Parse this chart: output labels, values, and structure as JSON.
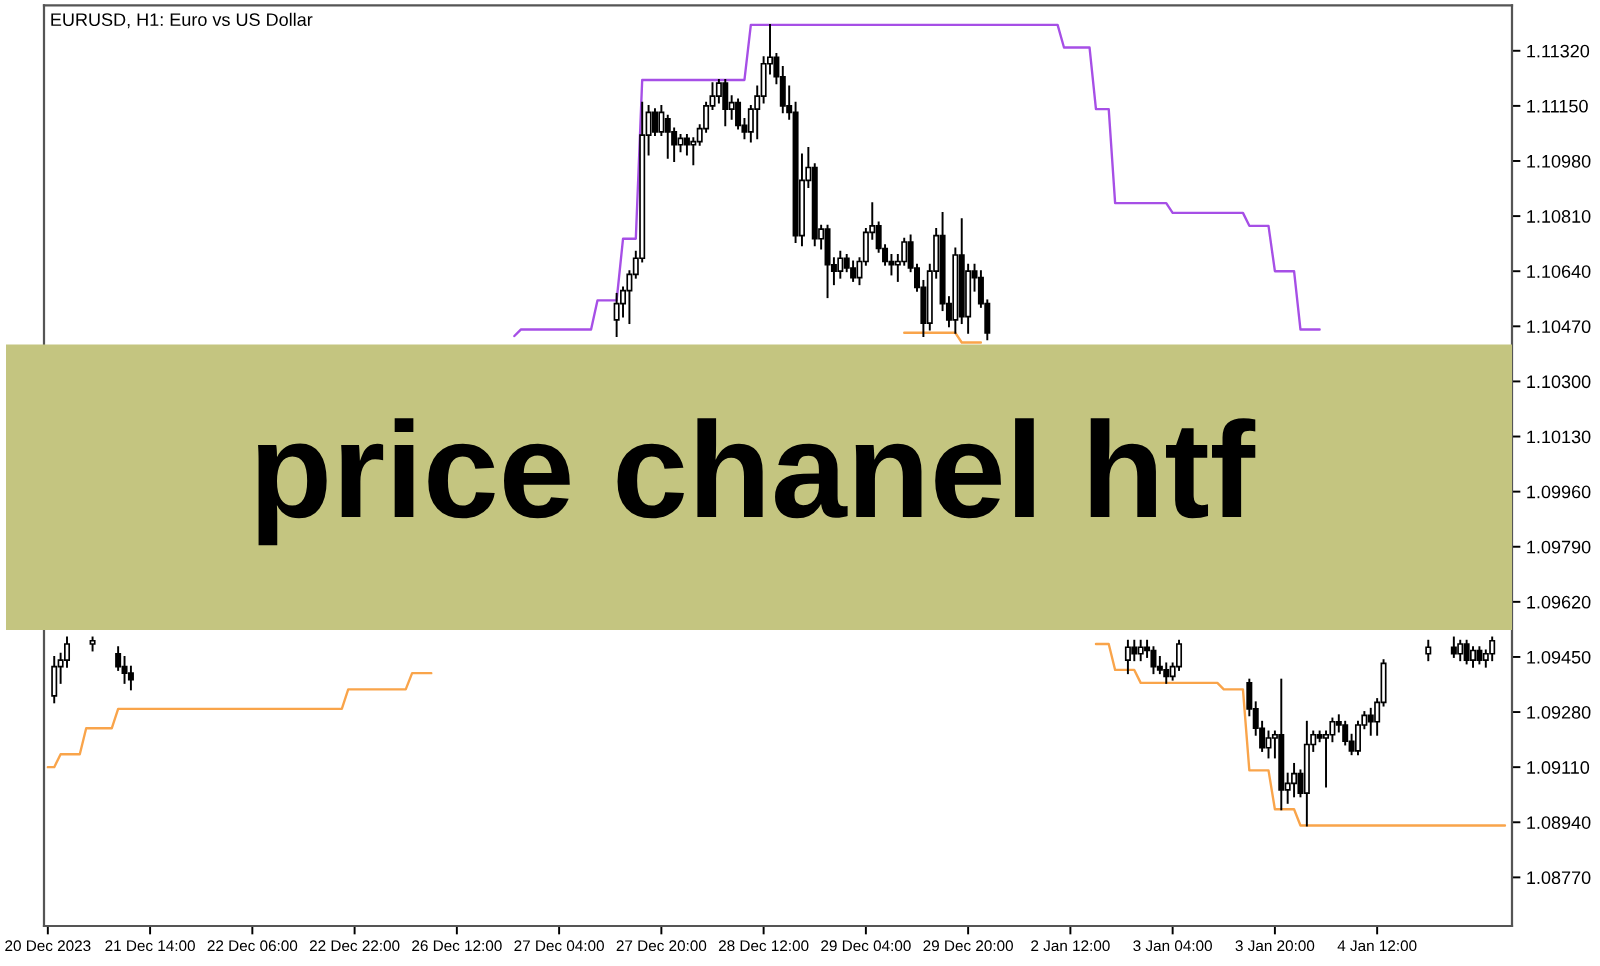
{
  "chart_data": {
    "type": "candlestick",
    "title": "price chanel htf",
    "subtitle": "EURUSD, H1: Euro vs US Dollar",
    "categories": [
      "20 Dec 2023",
      null,
      null,
      null,
      null,
      null,
      null,
      null,
      null,
      null,
      null,
      null,
      null,
      null,
      null,
      null,
      "21 Dec 14:00",
      null,
      null,
      null,
      null,
      null,
      null,
      null,
      null,
      null,
      null,
      null,
      null,
      null,
      null,
      null,
      "22 Dec 06:00",
      null,
      null,
      null,
      null,
      null,
      null,
      null,
      null,
      null,
      null,
      null,
      null,
      null,
      null,
      null,
      "22 Dec 22:00",
      null,
      null,
      null,
      null,
      null,
      null,
      null,
      null,
      null,
      null,
      null,
      null,
      null,
      null,
      null,
      "26 Dec 12:00",
      null,
      null,
      null,
      null,
      null,
      null,
      null,
      null,
      null,
      null,
      null,
      null,
      null,
      null,
      null,
      "27 Dec 04:00",
      null,
      null,
      null,
      null,
      null,
      null,
      null,
      null,
      null,
      null,
      null,
      null,
      null,
      null,
      null,
      "27 Dec 20:00",
      null,
      null,
      null,
      null,
      null,
      null,
      null,
      null,
      null,
      null,
      null,
      null,
      null,
      null,
      null,
      "28 Dec 12:00",
      null,
      null,
      null,
      null,
      null,
      null,
      null,
      null,
      null,
      null,
      null,
      null,
      null,
      null,
      null,
      "29 Dec 04:00",
      null,
      null,
      null,
      null,
      null,
      null,
      null,
      null,
      null,
      null,
      null,
      null,
      null,
      null,
      null,
      "29 Dec 20:00",
      null,
      null,
      null,
      null,
      null,
      null,
      null,
      null,
      null,
      null,
      null,
      null,
      null,
      null,
      null,
      "2 Jan 12:00",
      null,
      null,
      null,
      null,
      null,
      null,
      null,
      null,
      null,
      null,
      null,
      null,
      null,
      null,
      null,
      "3 Jan 04:00",
      null,
      null,
      null,
      null,
      null,
      null,
      null,
      null,
      null,
      null,
      null,
      null,
      null,
      null,
      null,
      "3 Jan 20:00",
      null,
      null,
      null,
      null,
      null,
      null,
      null,
      null,
      null,
      null,
      null,
      null,
      null,
      null,
      null,
      "4 Jan 12:00",
      null,
      null,
      null,
      null,
      null,
      null,
      null,
      null,
      null,
      null,
      null,
      null,
      null,
      null,
      null,
      null,
      null,
      null,
      null,
      null
    ],
    "ohlc": [
      null,
      [
        1.0933,
        1.0945,
        1.0931,
        1.0942
      ],
      [
        1.0942,
        1.0946,
        1.0937,
        1.0944
      ],
      [
        1.0944,
        1.0951,
        1.0942,
        1.0949
      ],
      null,
      null,
      null,
      [
        1.0949,
        1.0951,
        1.0947,
        1.095
      ],
      null,
      null,
      null,
      [
        1.0946,
        1.0948,
        1.0941,
        1.0942
      ],
      [
        1.0942,
        1.0945,
        1.0937,
        1.094
      ],
      [
        1.094,
        1.0942,
        1.0935,
        1.0938
      ],
      null,
      null,
      null,
      null,
      null,
      null,
      null,
      null,
      null,
      null,
      null,
      null,
      null,
      null,
      null,
      null,
      null,
      null,
      null,
      null,
      null,
      null,
      null,
      null,
      null,
      null,
      null,
      null,
      null,
      null,
      null,
      null,
      null,
      null,
      null,
      null,
      null,
      null,
      null,
      null,
      null,
      null,
      null,
      null,
      null,
      null,
      null,
      null,
      null,
      null,
      null,
      null,
      null,
      null,
      null,
      null,
      null,
      null,
      null,
      null,
      null,
      null,
      null,
      null,
      null,
      null,
      null,
      null,
      null,
      null,
      null,
      null,
      null,
      null,
      null,
      [
        1.1049,
        1.1057,
        1.1044,
        1.1054
      ],
      [
        1.1054,
        1.1059,
        1.105,
        1.1058
      ],
      [
        1.1058,
        1.1064,
        1.1048,
        1.1063
      ],
      [
        1.1063,
        1.107,
        1.1062,
        1.1068
      ],
      [
        1.1068,
        1.1116,
        1.1067,
        1.1106
      ],
      [
        1.1106,
        1.1115,
        1.11,
        1.1113
      ],
      [
        1.1113,
        1.1114,
        1.1106,
        1.1107
      ],
      [
        1.1107,
        1.1115,
        1.1106,
        1.1113
      ],
      [
        1.1111,
        1.1112,
        1.1099,
        1.1107
      ],
      [
        1.1107,
        1.1108,
        1.1098,
        1.1103
      ],
      [
        1.1103,
        1.1106,
        1.1101,
        1.1105
      ],
      [
        1.1105,
        1.1106,
        1.11,
        1.1103
      ],
      [
        1.1103,
        1.1105,
        1.1097,
        1.1104
      ],
      [
        1.1104,
        1.1109,
        1.1103,
        1.1108
      ],
      [
        1.1108,
        1.1116,
        1.1107,
        1.1115
      ],
      [
        1.1115,
        1.1122,
        1.1114,
        1.1118
      ],
      [
        1.1118,
        1.1123,
        1.1116,
        1.1122
      ],
      [
        1.1122,
        1.1123,
        1.1109,
        1.1114
      ],
      [
        1.1114,
        1.1118,
        1.1111,
        1.1116
      ],
      [
        1.1116,
        1.1117,
        1.1108,
        1.1109
      ],
      [
        1.1109,
        1.1111,
        1.1105,
        1.1107
      ],
      [
        1.1107,
        1.1115,
        1.1104,
        1.1114
      ],
      [
        1.1114,
        1.1121,
        1.1105,
        1.1118
      ],
      [
        1.1118,
        1.113,
        1.1116,
        1.1128
      ],
      [
        1.1128,
        1.114,
        1.1125,
        1.113
      ],
      [
        1.113,
        1.1131,
        1.1122,
        1.1124
      ],
      [
        1.1124,
        1.1127,
        1.1113,
        1.1115
      ],
      [
        1.1115,
        1.1121,
        1.1111,
        1.1113
      ],
      [
        1.1113,
        1.1116,
        1.1073,
        1.1075
      ],
      [
        1.1075,
        1.11,
        1.1072,
        1.1092
      ],
      [
        1.1092,
        1.1102,
        1.109,
        1.1096
      ],
      [
        1.1096,
        1.1097,
        1.1072,
        1.1074
      ],
      [
        1.1074,
        1.1078,
        1.1071,
        1.1077
      ],
      [
        1.1077,
        1.1078,
        1.1056,
        1.1066
      ],
      [
        1.1066,
        1.1068,
        1.106,
        1.1064
      ],
      [
        1.1064,
        1.107,
        1.1062,
        1.1068
      ],
      [
        1.1068,
        1.1069,
        1.1064,
        1.1065
      ],
      [
        1.1065,
        1.1067,
        1.1061,
        1.1062
      ],
      [
        1.1062,
        1.1068,
        1.106,
        1.1067
      ],
      [
        1.1067,
        1.1077,
        1.1066,
        1.1076
      ],
      [
        1.1076,
        1.1085,
        1.1074,
        1.1078
      ],
      [
        1.1078,
        1.1079,
        1.107,
        1.1071
      ],
      [
        1.1071,
        1.1072,
        1.1066,
        1.1067
      ],
      [
        1.1067,
        1.1069,
        1.1063,
        1.1066
      ],
      [
        1.1066,
        1.1069,
        1.1061,
        1.1067
      ],
      [
        1.1067,
        1.1074,
        1.1066,
        1.1073
      ],
      [
        1.1073,
        1.1075,
        1.1064,
        1.1065
      ],
      [
        1.1065,
        1.1066,
        1.1058,
        1.1059
      ],
      [
        1.1059,
        1.1061,
        1.1044,
        1.1048
      ],
      [
        1.1048,
        1.1066,
        1.1046,
        1.1064
      ],
      [
        1.1064,
        1.1077,
        1.1062,
        1.1075
      ],
      [
        1.1075,
        1.1082,
        1.1052,
        1.1054
      ],
      [
        1.1054,
        1.1056,
        1.1047,
        1.1049
      ],
      [
        1.1049,
        1.1071,
        1.1045,
        1.1069
      ],
      [
        1.1069,
        1.108,
        1.1048,
        1.105
      ],
      [
        1.105,
        1.1066,
        1.1045,
        1.1064
      ],
      [
        1.1064,
        1.1066,
        1.1058,
        1.1062
      ],
      [
        1.1062,
        1.1064,
        1.1053,
        1.1054
      ],
      [
        1.1054,
        1.1055,
        1.1043,
        1.1045
      ],
      null,
      null,
      null,
      null,
      null,
      null,
      null,
      null,
      null,
      null,
      null,
      null,
      null,
      null,
      null,
      null,
      null,
      null,
      null,
      null,
      null,
      [
        1.0944,
        1.095,
        1.094,
        1.0948
      ],
      [
        1.0948,
        1.095,
        1.0944,
        1.0946
      ],
      [
        1.0946,
        1.095,
        1.0944,
        1.0948
      ],
      [
        1.0948,
        1.095,
        1.0945,
        1.0947
      ],
      [
        1.0947,
        1.0948,
        1.094,
        1.0942
      ],
      [
        1.0942,
        1.0945,
        1.094,
        1.0941
      ],
      [
        1.0941,
        1.0943,
        1.0937,
        1.0939
      ],
      [
        1.0939,
        1.0943,
        1.0938,
        1.0942
      ],
      [
        1.0942,
        1.095,
        1.0941,
        1.0949
      ],
      null,
      null,
      null,
      null,
      null,
      null,
      null,
      null,
      null,
      null,
      [
        1.0937,
        1.0938,
        1.0927,
        1.0929
      ],
      [
        1.0929,
        1.0931,
        1.0921,
        1.0923
      ],
      [
        1.0923,
        1.0925,
        1.0916,
        1.0917
      ],
      [
        1.0917,
        1.0922,
        1.0914,
        1.092
      ],
      [
        1.092,
        1.0922,
        1.0914,
        1.0921
      ],
      [
        1.0921,
        1.0938,
        1.0898,
        1.0904
      ],
      [
        1.0904,
        1.0909,
        1.09,
        1.0906
      ],
      [
        1.0906,
        1.0912,
        1.0902,
        1.0909
      ],
      [
        1.0909,
        1.091,
        1.0902,
        1.0903
      ],
      [
        1.0903,
        1.0925,
        1.0893,
        1.0918
      ],
      [
        1.0918,
        1.0922,
        1.0916,
        1.0921
      ],
      [
        1.0921,
        1.0922,
        1.0919,
        1.092
      ],
      [
        1.092,
        1.0922,
        1.0905,
        1.0921
      ],
      [
        1.0921,
        1.0926,
        1.0919,
        1.0925
      ],
      [
        1.0925,
        1.0927,
        1.0922,
        1.0924
      ],
      [
        1.0924,
        1.0925,
        1.0918,
        1.0919
      ],
      [
        1.0919,
        1.0921,
        1.0915,
        1.0916
      ],
      [
        1.0916,
        1.0925,
        1.0915,
        1.0924
      ],
      [
        1.0924,
        1.0928,
        1.0923,
        1.0927
      ],
      [
        1.0927,
        1.0929,
        1.0921,
        1.0925
      ],
      [
        1.0925,
        1.0932,
        1.0921,
        1.0931
      ],
      [
        1.0931,
        1.0944,
        1.093,
        1.0943
      ],
      null,
      null,
      null,
      null,
      null,
      null,
      [
        1.0946,
        1.095,
        1.0944,
        1.0948
      ],
      null,
      null,
      null,
      [
        1.0948,
        1.0951,
        1.0945,
        1.0946
      ],
      [
        1.0946,
        1.095,
        1.0944,
        1.0949
      ],
      [
        1.0949,
        1.095,
        1.0943,
        1.0944
      ],
      [
        1.0944,
        1.0948,
        1.0942,
        1.0947
      ],
      [
        1.0947,
        1.0948,
        1.0943,
        1.0944
      ],
      [
        1.0944,
        1.0947,
        1.0942,
        1.0946
      ],
      [
        1.0946,
        1.0951,
        1.0944,
        1.095
      ],
      null,
      null
    ],
    "series": [
      {
        "type": "line",
        "color": "#a64fe6",
        "values": [
          null,
          null,
          null,
          null,
          null,
          null,
          null,
          null,
          null,
          null,
          null,
          null,
          null,
          null,
          null,
          null,
          null,
          null,
          null,
          null,
          null,
          null,
          null,
          null,
          null,
          null,
          null,
          null,
          null,
          null,
          null,
          null,
          null,
          null,
          null,
          null,
          null,
          null,
          null,
          null,
          null,
          null,
          null,
          null,
          null,
          null,
          null,
          null,
          null,
          null,
          null,
          null,
          null,
          null,
          null,
          null,
          null,
          null,
          null,
          null,
          null,
          null,
          null,
          null,
          null,
          null,
          null,
          null,
          null,
          null,
          null,
          null,
          null,
          1.1044,
          1.1046,
          1.1046,
          1.1046,
          1.1046,
          1.1046,
          1.1046,
          1.1046,
          1.1046,
          1.1046,
          1.1046,
          1.1046,
          1.1046,
          1.1055,
          1.1055,
          1.1055,
          1.1055,
          1.1074,
          1.1074,
          1.1074,
          1.1123,
          1.1123,
          1.1123,
          1.1123,
          1.1123,
          1.1123,
          1.1123,
          1.1123,
          1.1123,
          1.1123,
          1.1123,
          1.1123,
          1.1123,
          1.1123,
          1.1123,
          1.1123,
          1.1123,
          1.114,
          1.114,
          1.114,
          1.114,
          1.114,
          1.114,
          1.114,
          1.114,
          1.114,
          1.114,
          1.114,
          1.114,
          1.114,
          1.114,
          1.114,
          1.114,
          1.114,
          1.114,
          1.114,
          1.114,
          1.114,
          1.114,
          1.114,
          1.114,
          1.114,
          1.114,
          1.114,
          1.114,
          1.114,
          1.114,
          1.114,
          1.114,
          1.114,
          1.114,
          1.114,
          1.114,
          1.114,
          1.114,
          1.114,
          1.114,
          1.114,
          1.114,
          1.114,
          1.114,
          1.114,
          1.114,
          1.114,
          1.114,
          1.114,
          1.1133,
          1.1133,
          1.1133,
          1.1133,
          1.1133,
          1.1114,
          1.1114,
          1.1114,
          1.1085,
          1.1085,
          1.1085,
          1.1085,
          1.1085,
          1.1085,
          1.1085,
          1.1085,
          1.1085,
          1.1082,
          1.1082,
          1.1082,
          1.1082,
          1.1082,
          1.1082,
          1.1082,
          1.1082,
          1.1082,
          1.1082,
          1.1082,
          1.1082,
          1.1078,
          1.1078,
          1.1078,
          1.1078,
          1.1064,
          1.1064,
          1.1064,
          1.1064,
          1.1046,
          1.1046,
          1.1046,
          1.1046,
          null,
          null,
          null,
          null,
          null,
          null,
          null,
          null,
          null,
          null,
          null,
          null,
          null,
          null,
          null,
          null,
          null,
          null,
          null,
          null,
          null,
          null,
          null,
          null,
          null,
          null,
          null,
          null,
          null
        ]
      },
      {
        "type": "line",
        "color": "#f9a44a",
        "values": [
          1.0911,
          1.0911,
          1.0915,
          1.0915,
          1.0915,
          1.0915,
          1.0923,
          1.0923,
          1.0923,
          1.0923,
          1.0923,
          1.0929,
          1.0929,
          1.0929,
          1.0929,
          1.0929,
          1.0929,
          1.0929,
          1.0929,
          1.0929,
          1.0929,
          1.0929,
          1.0929,
          1.0929,
          1.0929,
          1.0929,
          1.0929,
          1.0929,
          1.0929,
          1.0929,
          1.0929,
          1.0929,
          1.0929,
          1.0929,
          1.0929,
          1.0929,
          1.0929,
          1.0929,
          1.0929,
          1.0929,
          1.0929,
          1.0929,
          1.0929,
          1.0929,
          1.0929,
          1.0929,
          1.0929,
          1.0935,
          1.0935,
          1.0935,
          1.0935,
          1.0935,
          1.0935,
          1.0935,
          1.0935,
          1.0935,
          1.0935,
          1.094,
          1.094,
          1.094,
          1.094,
          null,
          null,
          null,
          null,
          null,
          null,
          null,
          null,
          null,
          null,
          null,
          null,
          null,
          null,
          null,
          null,
          null,
          null,
          null,
          null,
          null,
          null,
          null,
          null,
          null,
          null,
          null,
          null,
          null,
          null,
          null,
          null,
          null,
          null,
          null,
          null,
          null,
          null,
          null,
          null,
          null,
          null,
          null,
          null,
          null,
          null,
          null,
          null,
          null,
          null,
          null,
          null,
          null,
          null,
          null,
          null,
          null,
          null,
          null,
          null,
          null,
          null,
          null,
          null,
          null,
          null,
          null,
          null,
          null,
          null,
          null,
          null,
          null,
          1.1045,
          1.1045,
          1.1045,
          1.1045,
          1.1045,
          1.1045,
          1.1045,
          1.1045,
          1.1045,
          1.1042,
          1.1042,
          1.1042,
          1.1042,
          null,
          null,
          null,
          null,
          null,
          null,
          null,
          null,
          null,
          null,
          null,
          null,
          null,
          null,
          null,
          null,
          null,
          1.0949,
          1.0949,
          1.0949,
          1.0941,
          1.0941,
          1.0941,
          1.0941,
          1.0937,
          1.0937,
          1.0937,
          1.0937,
          1.0937,
          1.0937,
          1.0937,
          1.0937,
          1.0937,
          1.0937,
          1.0937,
          1.0937,
          1.0937,
          1.0935,
          1.0935,
          1.0935,
          1.0935,
          1.091,
          1.091,
          1.091,
          1.091,
          1.0898,
          1.0898,
          1.0898,
          1.0898,
          1.0893,
          1.0893,
          1.0893,
          1.0893,
          1.0893,
          1.0893,
          1.0893,
          1.0893,
          1.0893,
          1.0893,
          1.0893,
          1.0893,
          1.0893,
          1.0893,
          1.0893,
          1.0893,
          1.0893,
          1.0893,
          1.0893,
          1.0893,
          1.0893,
          1.0893,
          1.0893,
          1.0893,
          1.0893,
          1.0893,
          1.0893,
          1.0893,
          1.0893,
          1.0893,
          1.0893,
          1.0893,
          1.0893
        ]
      }
    ],
    "ylim": [
      1.0862,
      1.1146
    ],
    "yticks": [
      {
        "value": 1.0877,
        "label": "1.08770"
      },
      {
        "value": 1.0894,
        "label": "1.08940"
      },
      {
        "value": 1.0911,
        "label": "1.09110"
      },
      {
        "value": 1.0928,
        "label": "1.09280"
      },
      {
        "value": 1.0945,
        "label": "1.09450"
      },
      {
        "value": 1.0962,
        "label": "1.09620"
      },
      {
        "value": 1.0979,
        "label": "1.09790"
      },
      {
        "value": 1.0996,
        "label": "1.09960"
      },
      {
        "value": 1.1013,
        "label": "1.10130"
      },
      {
        "value": 1.103,
        "label": "1.10300"
      },
      {
        "value": 1.1047,
        "label": "1.10470"
      },
      {
        "value": 1.1064,
        "label": "1.10640"
      },
      {
        "value": 1.1081,
        "label": "1.10810"
      },
      {
        "value": 1.1098,
        "label": "1.10980"
      },
      {
        "value": 1.1115,
        "label": "1.11150"
      },
      {
        "value": 1.1132,
        "label": "1.11320"
      }
    ]
  }
}
